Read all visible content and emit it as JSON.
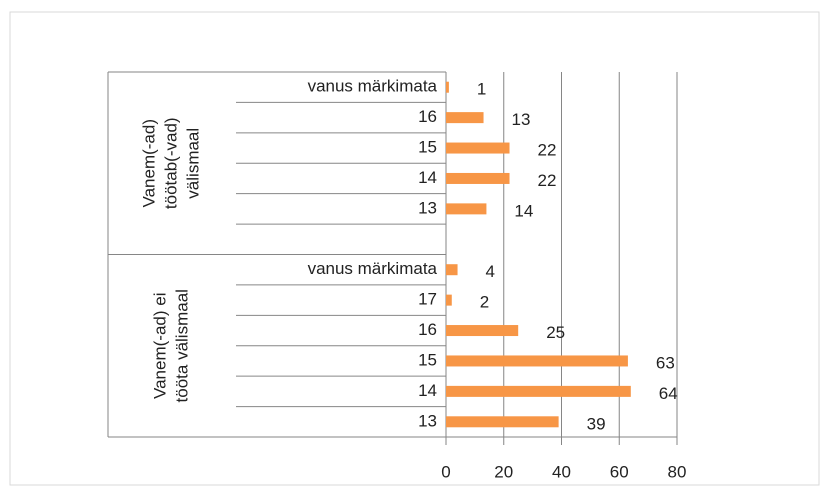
{
  "chart_data": {
    "type": "bar",
    "orientation": "horizontal",
    "color": "#f79646",
    "groups": [
      {
        "name": [
          "Vanem(-ad)",
          "töötab(-vad)",
          "välismaal"
        ],
        "categories": [
          "vanus märkimata",
          "16",
          "15",
          "14",
          "13",
          null
        ],
        "values": [
          1,
          13,
          22,
          22,
          14,
          null
        ]
      },
      {
        "name": [
          "Vanem(-ad) ei",
          "tööta välismaal"
        ],
        "categories": [
          "vanus märkimata",
          "17",
          "16",
          "15",
          "14",
          "13"
        ],
        "values": [
          4,
          2,
          25,
          63,
          64,
          39
        ]
      }
    ],
    "xlim": [
      0,
      80
    ],
    "xticks": [
      0,
      20,
      40,
      60,
      80
    ],
    "grid": true
  }
}
